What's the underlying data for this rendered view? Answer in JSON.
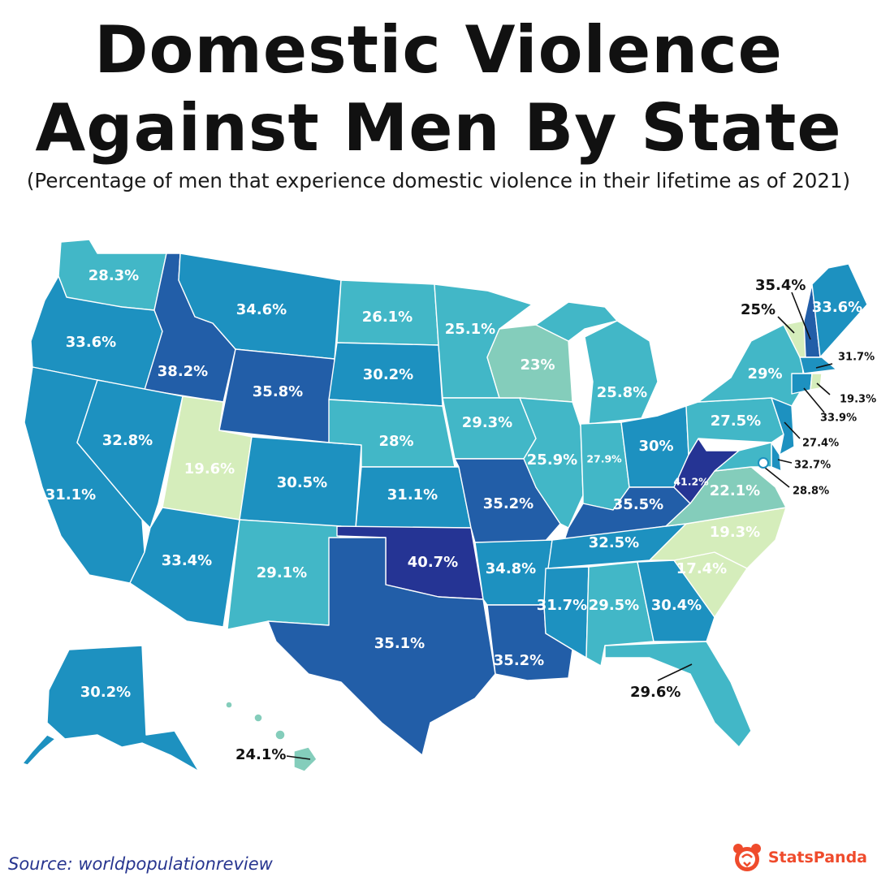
{
  "header": {
    "title_line1": "Domestic Violence",
    "title_line2": "Against Men By State",
    "subtitle": "(Percentage of men that experience domestic violence in their lifetime as of 2021)"
  },
  "colors": {
    "scale": [
      "#d5edbb",
      "#84cdbb",
      "#42b7c7",
      "#1d91c0",
      "#225ea8",
      "#253494"
    ],
    "border": "#ffffff"
  },
  "states": {
    "WA": "28.3%",
    "OR": "33.6%",
    "CA": "31.1%",
    "ID": "38.2%",
    "NV": "32.8%",
    "UT": "19.6%",
    "AZ": "33.4%",
    "MT": "34.6%",
    "WY": "35.8%",
    "CO": "30.5%",
    "NM": "29.1%",
    "ND": "26.1%",
    "SD": "30.2%",
    "NE": "28%",
    "KS": "31.1%",
    "OK": "40.7%",
    "TX": "35.1%",
    "MN": "25.1%",
    "IA": "29.3%",
    "MO": "35.2%",
    "AR": "34.8%",
    "LA": "35.2%",
    "WI": "23%",
    "IL": "25.9%",
    "MI": "25.8%",
    "IN": "27.9%",
    "OH": "30%",
    "KY": "35.5%",
    "TN": "32.5%",
    "MS": "31.7%",
    "AL": "29.5%",
    "GA": "30.4%",
    "FL": "29.6%",
    "SC": "17.4%",
    "NC": "19.3%",
    "VA": "22.1%",
    "WV": "41.2%",
    "PA": "27.5%",
    "NY": "29%",
    "VT": "25%",
    "NH": "35.4%",
    "ME": "33.6%",
    "MA": "31.7%",
    "RI": "19.3%",
    "CT": "33.9%",
    "NJ": "27.4%",
    "DE": "32.7%",
    "MD": "28.8%",
    "AK": "30.2%",
    "HI": "24.1%"
  },
  "footer": {
    "source": "Source: worldpopulationreview",
    "brand": "StatsPanda"
  }
}
